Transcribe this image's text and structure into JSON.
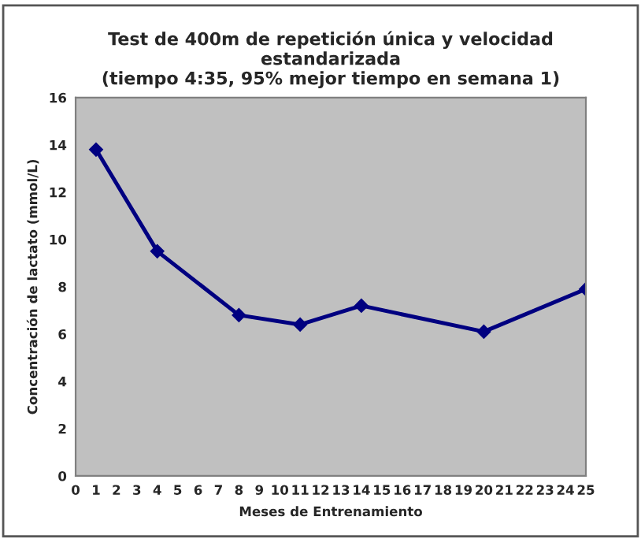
{
  "chart_data": {
    "type": "line",
    "title": "Test de 400m de repetición única y velocidad\nestandarizada\n(tiempo 4:35, 95% mejor tiempo en semana 1)",
    "xlabel": "Meses de Entrenamiento",
    "ylabel": "Concentración de lactato (mmol/L)",
    "x": [
      1,
      4,
      8,
      11,
      14,
      20,
      25
    ],
    "series": [
      {
        "color": "#000080",
        "values": [
          13.8,
          9.5,
          6.8,
          6.4,
          7.2,
          6.1,
          7.9
        ]
      }
    ],
    "xlim": [
      0,
      25
    ],
    "xticks": [
      0,
      1,
      2,
      3,
      4,
      5,
      6,
      7,
      8,
      9,
      10,
      11,
      12,
      13,
      14,
      15,
      16,
      17,
      18,
      19,
      20,
      21,
      22,
      23,
      24,
      25
    ],
    "ylim": [
      0,
      16
    ],
    "yticks": [
      0,
      2,
      4,
      6,
      8,
      10,
      12,
      14,
      16
    ],
    "marker": "diamond",
    "line_style": "solid",
    "grid": false,
    "legend": false
  }
}
